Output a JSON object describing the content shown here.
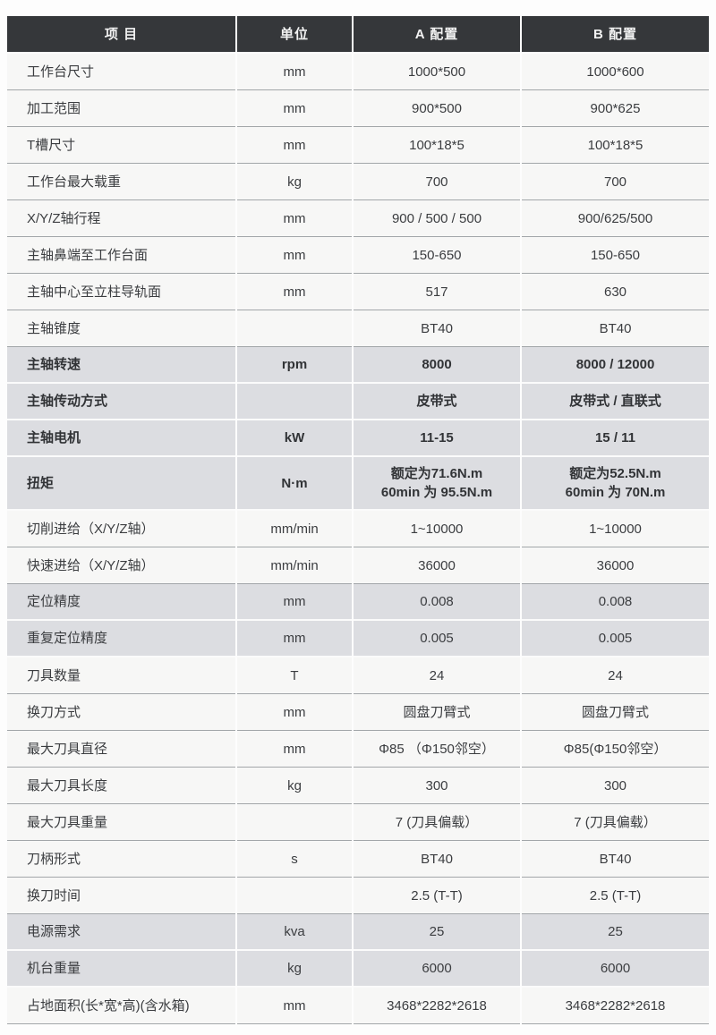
{
  "colors": {
    "header_bg": "#35373a",
    "header_text": "#f2f2f2",
    "row_gray_bg": "#dcdde1",
    "row_white_bg": "#f7f7f6",
    "separator": "#a2a6a9",
    "text": "#3b3d40",
    "page_bg": "#fdfdfd"
  },
  "table": {
    "columns": [
      {
        "key": "item",
        "label": "项 目"
      },
      {
        "key": "unit",
        "label": "单位"
      },
      {
        "key": "a",
        "label": "A 配置"
      },
      {
        "key": "b",
        "label": "B 配置"
      }
    ],
    "rows": [
      {
        "item": "工作台尺寸",
        "unit": "mm",
        "a": "1000*500",
        "b": "1000*600",
        "shaded": false,
        "bold": false,
        "tall": false
      },
      {
        "item": "加工范围",
        "unit": "mm",
        "a": "900*500",
        "b": "900*625",
        "shaded": false,
        "bold": false,
        "tall": false
      },
      {
        "item": "T槽尺寸",
        "unit": "mm",
        "a": "100*18*5",
        "b": "100*18*5",
        "shaded": false,
        "bold": false,
        "tall": false
      },
      {
        "item": "工作台最大载重",
        "unit": "kg",
        "a": "700",
        "b": "700",
        "shaded": false,
        "bold": false,
        "tall": false
      },
      {
        "item": "X/Y/Z轴行程",
        "unit": "mm",
        "a": "900 / 500 / 500",
        "b": "900/625/500",
        "shaded": false,
        "bold": false,
        "tall": false
      },
      {
        "item": "主轴鼻端至工作台面",
        "unit": "mm",
        "a": "150-650",
        "b": "150-650",
        "shaded": false,
        "bold": false,
        "tall": false
      },
      {
        "item": "主轴中心至立柱导轨面",
        "unit": "mm",
        "a": "517",
        "b": "630",
        "shaded": false,
        "bold": false,
        "tall": false
      },
      {
        "item": "主轴锥度",
        "unit": "",
        "a": "BT40",
        "b": "BT40",
        "shaded": false,
        "bold": false,
        "tall": false
      },
      {
        "item": "主轴转速",
        "unit": "rpm",
        "a": "8000",
        "b": "8000 / 12000",
        "shaded": true,
        "bold": true,
        "tall": false
      },
      {
        "item": "主轴传动方式",
        "unit": "",
        "a": "皮带式",
        "b": "皮带式 / 直联式",
        "shaded": true,
        "bold": true,
        "tall": false
      },
      {
        "item": "主轴电机",
        "unit": "kW",
        "a": "11-15",
        "b": "15 / 11",
        "shaded": true,
        "bold": true,
        "tall": false
      },
      {
        "item": "扭矩",
        "unit": "N·m",
        "a": "额定为71.6N.m\n60min 为 95.5N.m",
        "b": "额定为52.5N.m\n60min 为 70N.m",
        "shaded": true,
        "bold": true,
        "tall": true
      },
      {
        "item": "切削进给（X/Y/Z轴）",
        "unit": "mm/min",
        "a": "1~10000",
        "b": "1~10000",
        "shaded": false,
        "bold": false,
        "tall": false
      },
      {
        "item": "快速进给（X/Y/Z轴）",
        "unit": "mm/min",
        "a": "36000",
        "b": "36000",
        "shaded": false,
        "bold": false,
        "tall": false
      },
      {
        "item": "定位精度",
        "unit": "mm",
        "a": "0.008",
        "b": "0.008",
        "shaded": true,
        "bold": false,
        "tall": false
      },
      {
        "item": "重复定位精度",
        "unit": "mm",
        "a": "0.005",
        "b": "0.005",
        "shaded": true,
        "bold": false,
        "tall": false
      },
      {
        "item": "刀具数量",
        "unit": "T",
        "a": "24",
        "b": "24",
        "shaded": false,
        "bold": false,
        "tall": false
      },
      {
        "item": "换刀方式",
        "unit": "mm",
        "a": "圆盘刀臂式",
        "b": "圆盘刀臂式",
        "shaded": false,
        "bold": false,
        "tall": false
      },
      {
        "item": "最大刀具直径",
        "unit": "mm",
        "a": "Φ85 （Φ150邻空）",
        "b": "Φ85(Φ150邻空）",
        "shaded": false,
        "bold": false,
        "tall": false
      },
      {
        "item": "最大刀具长度",
        "unit": "kg",
        "a": "300",
        "b": "300",
        "shaded": false,
        "bold": false,
        "tall": false
      },
      {
        "item": "最大刀具重量",
        "unit": "",
        "a": "7 (刀具偏载）",
        "b": "7 (刀具偏载）",
        "shaded": false,
        "bold": false,
        "tall": false
      },
      {
        "item": "刀柄形式",
        "unit": "s",
        "a": "BT40",
        "b": "BT40",
        "shaded": false,
        "bold": false,
        "tall": false
      },
      {
        "item": "换刀时间",
        "unit": "",
        "a": "2.5 (T-T)",
        "b": "2.5 (T-T)",
        "shaded": false,
        "bold": false,
        "tall": false
      },
      {
        "item": "电源需求",
        "unit": "kva",
        "a": "25",
        "b": "25",
        "shaded": true,
        "bold": false,
        "tall": false
      },
      {
        "item": "机台重量",
        "unit": "kg",
        "a": "6000",
        "b": "6000",
        "shaded": true,
        "bold": false,
        "tall": false
      },
      {
        "item": "占地面积(长*宽*高)(含水箱)",
        "unit": "mm",
        "a": "3468*2282*2618",
        "b": "3468*2282*2618",
        "shaded": false,
        "bold": false,
        "tall": false
      }
    ]
  }
}
